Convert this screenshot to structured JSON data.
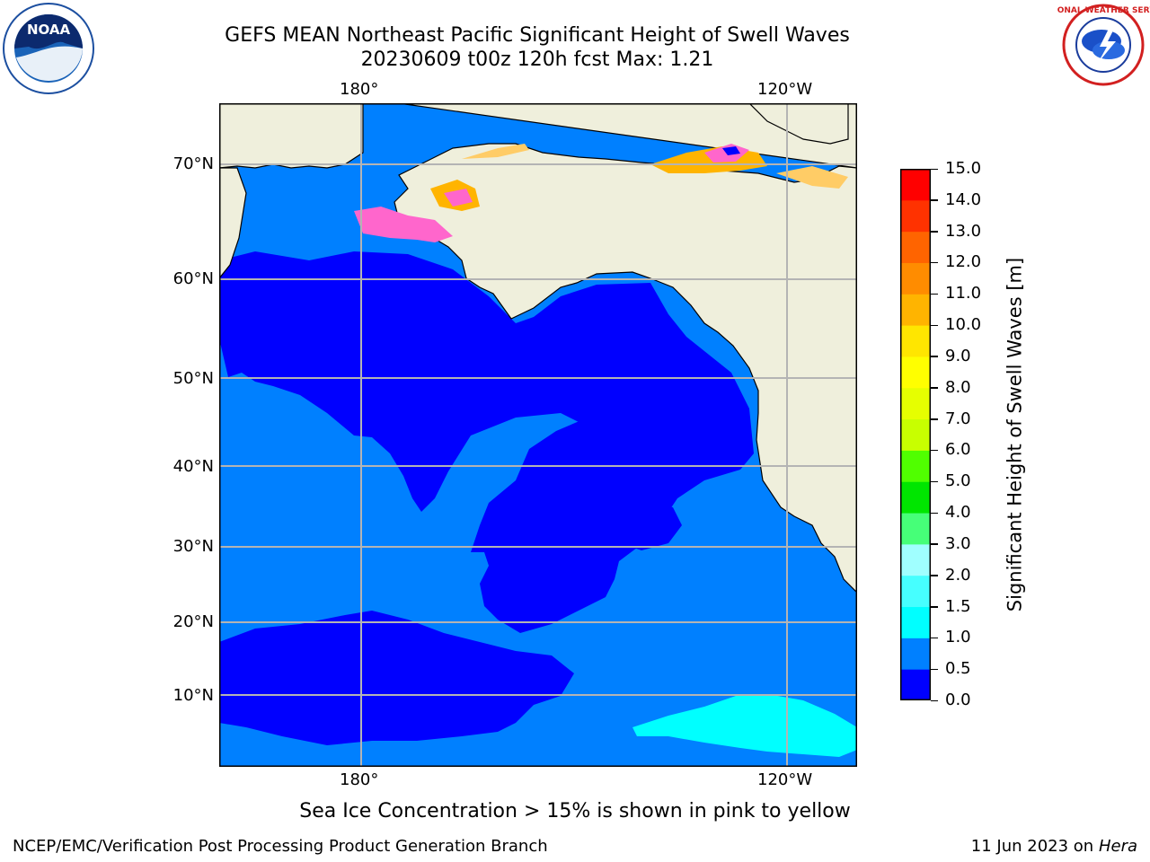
{
  "header": {
    "title_line1": "GEFS MEAN Northeast Pacific Significant Height of Swell Waves",
    "title_line2": "20230609 t00z 120h fcst   Max: 1.21"
  },
  "logos": {
    "left": "NOAA",
    "right": "NATIONAL WEATHER SERVICE"
  },
  "map": {
    "lon_labels_top": [
      "180°",
      "120°W"
    ],
    "lon_labels_bottom": [
      "180°",
      "120°W"
    ],
    "lat_labels": [
      "70°N",
      "60°N",
      "50°N",
      "40°N",
      "30°N",
      "20°N",
      "10°N"
    ],
    "colors": {
      "land": "#efefdc",
      "band_0_05": "#0000ff",
      "band_05_1": "#0080ff",
      "band_1_15": "#00ffff",
      "grid": "#b4b4b4"
    }
  },
  "colorbar": {
    "label": "Significant Height of Swell Waves [m]",
    "ticks": [
      "15.0",
      "14.0",
      "13.0",
      "12.0",
      "11.0",
      "10.0",
      "9.0",
      "8.0",
      "7.0",
      "6.0",
      "5.0",
      "4.0",
      "3.0",
      "2.0",
      "1.5",
      "1.0",
      "0.5",
      "0.0"
    ],
    "colors_bottom_to_top": [
      "#0000ff",
      "#0080ff",
      "#00ffff",
      "#46ffff",
      "#a0ffff",
      "#46ff78",
      "#00e600",
      "#50ff00",
      "#c8ff00",
      "#e6ff00",
      "#ffff00",
      "#ffe600",
      "#ffb400",
      "#ff8c00",
      "#ff6400",
      "#ff3200",
      "#ff0000"
    ]
  },
  "footer": {
    "note": "Sea Ice Concentration > 15% is shown in pink to yellow",
    "credit": "NCEP/EMC/Verification Post Processing Product Generation Branch",
    "date": "11 Jun 2023 on",
    "machine": "Hera"
  }
}
